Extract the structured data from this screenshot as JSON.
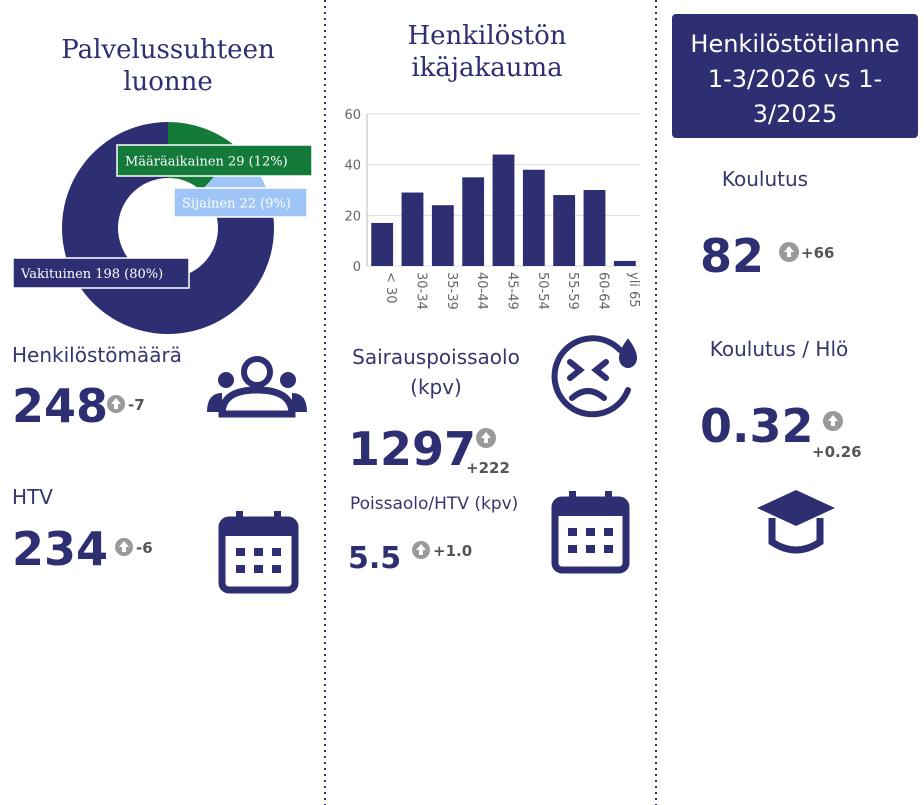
{
  "chart_data": [
    {
      "type": "pie",
      "title": [
        "Palvelussuhteen",
        "luonne"
      ],
      "categories": [
        "Määräaikainen",
        "Sijainen",
        "Vakituinen"
      ],
      "values": [
        29,
        22,
        198
      ],
      "value_labels": [
        "29 (12%)",
        "22 (9%)",
        "198 (80%)"
      ],
      "colors": [
        "#137a3a",
        "#9ec5f5",
        "#2e2e73"
      ],
      "donut": true
    },
    {
      "type": "bar",
      "title": [
        "Henkilöstön",
        "ikäjakauma"
      ],
      "categories": [
        "< 30",
        "30-34",
        "35-39",
        "40-44",
        "45-49",
        "50-54",
        "55-59",
        "60-64",
        "yli 65"
      ],
      "values": [
        17,
        29,
        24,
        35,
        44,
        38,
        28,
        30,
        2
      ],
      "color": "#2e2e73",
      "ylim": [
        0,
        60
      ],
      "yticks": [
        0,
        20,
        40,
        60
      ],
      "grid": true
    }
  ],
  "header": [
    "Henkilöstötilanne",
    "1-3/2026 vs 1-",
    "3/2025"
  ],
  "kpis": [
    {
      "label": [
        "Henkilöstömäärä"
      ],
      "value": 248,
      "change": -7
    },
    {
      "label": [
        "HTV"
      ],
      "value": 234,
      "change": -6
    },
    {
      "label": [
        "Sairauspoissaolo",
        "(kpv)"
      ],
      "value": 1297,
      "change": "+222"
    },
    {
      "label": [
        "Poissaolo/HTV (kpv)"
      ],
      "value": 5.5,
      "change": "+1.0"
    },
    {
      "label": [
        "Koulutus"
      ],
      "value": 82,
      "change": "+66"
    },
    {
      "label": [
        "Koulutus / Hlö"
      ],
      "value": 0.32,
      "change": "+0.26"
    }
  ]
}
